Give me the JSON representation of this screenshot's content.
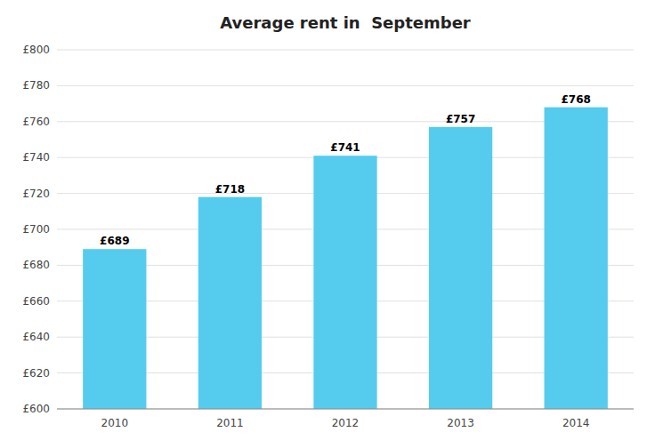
{
  "chart_data": {
    "type": "bar",
    "title": "Average rent in  September",
    "categories": [
      "2010",
      "2011",
      "2012",
      "2013",
      "2014"
    ],
    "values": [
      689,
      718,
      741,
      757,
      768
    ],
    "value_labels": [
      "£689",
      "£718",
      "£741",
      "£757",
      "£768"
    ],
    "data_labels": true,
    "color": "#55CCEE",
    "ylim": [
      600,
      800
    ],
    "yticks": [
      {
        "value": 600,
        "label": "£600"
      },
      {
        "value": 620,
        "label": "£620"
      },
      {
        "value": 640,
        "label": "£640"
      },
      {
        "value": 660,
        "label": "£660"
      },
      {
        "value": 680,
        "label": "£680"
      },
      {
        "value": 700,
        "label": "£700"
      },
      {
        "value": 720,
        "label": "£720"
      },
      {
        "value": 740,
        "label": "£740"
      },
      {
        "value": 760,
        "label": "£760"
      },
      {
        "value": 780,
        "label": "£780"
      },
      {
        "value": 800,
        "label": "£800"
      }
    ],
    "grid": true
  }
}
